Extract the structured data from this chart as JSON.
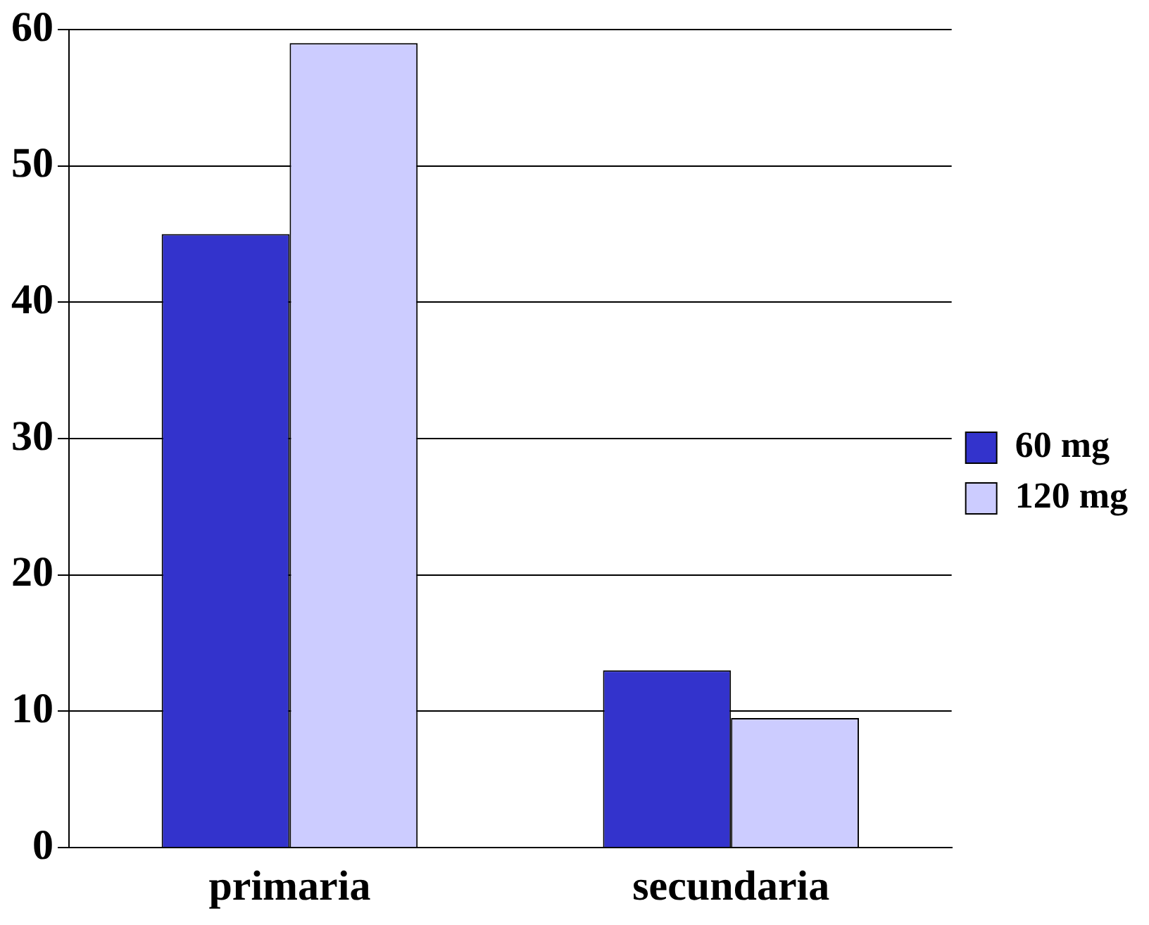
{
  "chart_data": {
    "type": "bar",
    "categories": [
      "primaria",
      "secundaria"
    ],
    "series": [
      {
        "name": "60 mg",
        "color": "#3333cc",
        "values": [
          45,
          13
        ]
      },
      {
        "name": "120 mg",
        "color": "#ccccff",
        "values": [
          59,
          9.5
        ]
      }
    ],
    "ylim": [
      0,
      60
    ],
    "yticks": [
      0,
      10,
      20,
      30,
      40,
      50,
      60
    ],
    "grid": "y",
    "legend": "right"
  }
}
